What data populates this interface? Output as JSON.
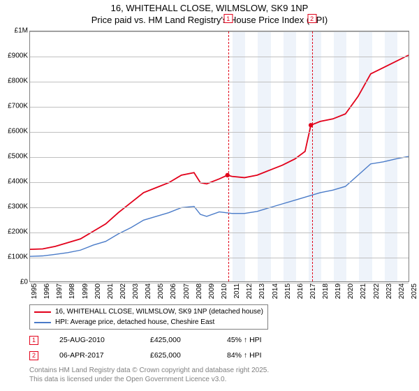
{
  "title_line1": "16, WHITEHALL CLOSE, WILMSLOW, SK9 1NP",
  "title_line2": "Price paid vs. HM Land Registry's House Price Index (HPI)",
  "chart": {
    "x_start_year": 1995,
    "x_end_year": 2025,
    "x_tick_step": 1,
    "ylim": [
      0,
      1000000
    ],
    "ytick_step": 100000,
    "yticks": [
      {
        "v": 0,
        "label": "£0"
      },
      {
        "v": 100000,
        "label": "£100K"
      },
      {
        "v": 200000,
        "label": "£200K"
      },
      {
        "v": 300000,
        "label": "£300K"
      },
      {
        "v": 400000,
        "label": "£400K"
      },
      {
        "v": 500000,
        "label": "£500K"
      },
      {
        "v": 600000,
        "label": "£600K"
      },
      {
        "v": 700000,
        "label": "£700K"
      },
      {
        "v": 800000,
        "label": "£800K"
      },
      {
        "v": 900000,
        "label": "£900K"
      },
      {
        "v": 1000000,
        "label": "£1M"
      }
    ],
    "background_color": "#ffffff",
    "grid_color": "#c0c0c0",
    "band_color": "#eef3fa",
    "band_years": [
      2011,
      2013,
      2015,
      2017,
      2019,
      2021,
      2023
    ],
    "series": [
      {
        "name": "16, WHITEHALL CLOSE, WILMSLOW, SK9 1NP (detached house)",
        "color": "#e2001a",
        "width": 1.8,
        "points": [
          [
            1995,
            128000
          ],
          [
            1996,
            130000
          ],
          [
            1997,
            140000
          ],
          [
            1998,
            155000
          ],
          [
            1999,
            170000
          ],
          [
            2000,
            200000
          ],
          [
            2001,
            230000
          ],
          [
            2002,
            275000
          ],
          [
            2003,
            315000
          ],
          [
            2004,
            355000
          ],
          [
            2005,
            375000
          ],
          [
            2006,
            395000
          ],
          [
            2007,
            425000
          ],
          [
            2008,
            435000
          ],
          [
            2008.5,
            395000
          ],
          [
            2009,
            390000
          ],
          [
            2010,
            410000
          ],
          [
            2010.65,
            425000
          ],
          [
            2011,
            420000
          ],
          [
            2012,
            415000
          ],
          [
            2013,
            425000
          ],
          [
            2014,
            445000
          ],
          [
            2015,
            465000
          ],
          [
            2016,
            490000
          ],
          [
            2016.8,
            520000
          ],
          [
            2017.26,
            625000
          ],
          [
            2018,
            640000
          ],
          [
            2019,
            650000
          ],
          [
            2020,
            670000
          ],
          [
            2021,
            740000
          ],
          [
            2022,
            830000
          ],
          [
            2023,
            855000
          ],
          [
            2024,
            880000
          ],
          [
            2025,
            905000
          ]
        ]
      },
      {
        "name": "HPI: Average price, detached house, Cheshire East",
        "color": "#4a7bc8",
        "width": 1.4,
        "points": [
          [
            1995,
            100000
          ],
          [
            1996,
            102000
          ],
          [
            1997,
            108000
          ],
          [
            1998,
            115000
          ],
          [
            1999,
            125000
          ],
          [
            2000,
            145000
          ],
          [
            2001,
            160000
          ],
          [
            2002,
            190000
          ],
          [
            2003,
            215000
          ],
          [
            2004,
            245000
          ],
          [
            2005,
            260000
          ],
          [
            2006,
            275000
          ],
          [
            2007,
            295000
          ],
          [
            2008,
            300000
          ],
          [
            2008.5,
            268000
          ],
          [
            2009,
            260000
          ],
          [
            2010,
            278000
          ],
          [
            2011,
            272000
          ],
          [
            2012,
            272000
          ],
          [
            2013,
            280000
          ],
          [
            2014,
            295000
          ],
          [
            2015,
            310000
          ],
          [
            2016,
            325000
          ],
          [
            2017,
            340000
          ],
          [
            2018,
            355000
          ],
          [
            2019,
            365000
          ],
          [
            2020,
            380000
          ],
          [
            2021,
            425000
          ],
          [
            2022,
            470000
          ],
          [
            2023,
            478000
          ],
          [
            2024,
            490000
          ],
          [
            2025,
            500000
          ]
        ]
      }
    ],
    "sale_markers": [
      {
        "n": "1",
        "year": 2010.65,
        "value": 425000,
        "color": "#e2001a"
      },
      {
        "n": "2",
        "year": 2017.26,
        "value": 625000,
        "color": "#e2001a"
      }
    ]
  },
  "legend": {
    "items": [
      {
        "color": "#e2001a",
        "label": "16, WHITEHALL CLOSE, WILMSLOW, SK9 1NP (detached house)"
      },
      {
        "color": "#4a7bc8",
        "label": "HPI: Average price, detached house, Cheshire East"
      }
    ]
  },
  "sales": [
    {
      "n": "1",
      "color": "#e2001a",
      "date": "25-AUG-2010",
      "price": "£425,000",
      "delta": "45% ↑ HPI"
    },
    {
      "n": "2",
      "color": "#e2001a",
      "date": "06-APR-2017",
      "price": "£625,000",
      "delta": "84% ↑ HPI"
    }
  ],
  "footer_line1": "Contains HM Land Registry data © Crown copyright and database right 2025.",
  "footer_line2": "This data is licensed under the Open Government Licence v3.0."
}
